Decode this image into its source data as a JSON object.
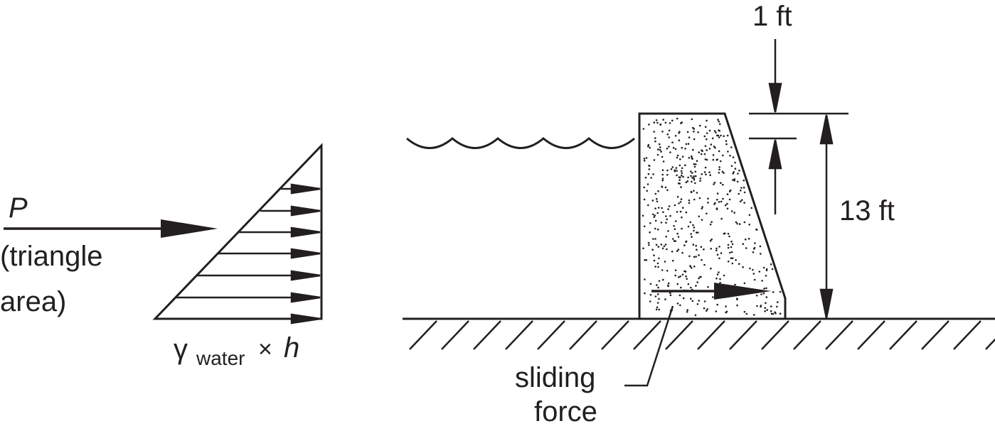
{
  "force_label": {
    "symbol": "P",
    "line1": "(triangle",
    "line2": "area)"
  },
  "pressure_label": {
    "gamma": "γ",
    "subscript": "water",
    "times": "×",
    "depth": "h"
  },
  "dimensions": {
    "freeboard": "1 ft",
    "height": "13 ft"
  },
  "sliding_label": {
    "line1": "sliding",
    "line2": "force"
  },
  "colors": {
    "ink": "#231f20",
    "background": "#ffffff"
  }
}
